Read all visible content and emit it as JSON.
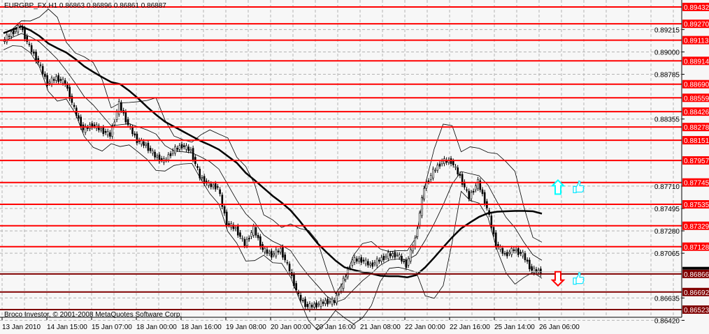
{
  "header": {
    "title": "EURGBP_FX,H1  0.86863 0.86896 0.86861 0.86887"
  },
  "footer": {
    "copyright": "Broco Investor, © 2001-2008 MetaQuotes Software Corp."
  },
  "colors": {
    "background": "#f7f7f7",
    "level_upper": "#ff0000",
    "level_lower": "#800000",
    "grid": "#b4b4b4",
    "up_arrow": "#00ffff",
    "down_arrow": "#ff0000",
    "thumb": "#00e5ff"
  },
  "signals": [
    {
      "type": "up-arrow",
      "icon": "thumbs-up-icon",
      "price": 0.877
    },
    {
      "type": "down-arrow",
      "icon": "thumbs-up-icon",
      "price": 0.8682
    }
  ],
  "chart_data": {
    "type": "candlestick",
    "symbol": "EURGBP_FX",
    "timeframe": "H1",
    "ylim": [
      0.8642,
      0.8948
    ],
    "grid": true,
    "price_ticks": [
      "0.89215",
      "0.89000",
      "0.88785",
      "0.88355",
      "0.87710",
      "0.87495",
      "0.87280",
      "0.87065",
      "0.86635",
      "0.86420"
    ],
    "time_ticks": [
      "13 Jan 2010",
      "14 Jan 15:00",
      "15 Jan 07:00",
      "18 Jan 00:00",
      "18 Jan 16:00",
      "19 Jan 08:00",
      "20 Jan 00:00",
      "20 Jan 16:00",
      "21 Jan 08:00",
      "22 Jan 00:00",
      "22 Jan 16:00",
      "25 Jan 14:00",
      "26 Jan 06:00"
    ],
    "levels_upper": [
      "0.89432",
      "0.89270",
      "0.89113",
      "0.88914",
      "0.88690",
      "0.88559",
      "0.88426",
      "0.88278",
      "0.88151",
      "0.87957",
      "0.87745",
      "0.87535",
      "0.87329",
      "0.87128"
    ],
    "levels_lower": [
      "0.86866",
      "0.86692",
      "0.86523"
    ],
    "current_price": "0.86887",
    "close": [
      0.891,
      0.8918,
      0.8925,
      0.8905,
      0.889,
      0.887,
      0.8875,
      0.887,
      0.8845,
      0.8825,
      0.883,
      0.8825,
      0.882,
      0.885,
      0.883,
      0.8815,
      0.881,
      0.88,
      0.8795,
      0.8805,
      0.881,
      0.8805,
      0.878,
      0.8772,
      0.877,
      0.8735,
      0.873,
      0.8715,
      0.873,
      0.871,
      0.8705,
      0.871,
      0.869,
      0.8665,
      0.8655,
      0.8657,
      0.866,
      0.866,
      0.868,
      0.87,
      0.87,
      0.8695,
      0.87,
      0.8705,
      0.8705,
      0.8695,
      0.872,
      0.877,
      0.8785,
      0.8795,
      0.8795,
      0.878,
      0.876,
      0.8775,
      0.875,
      0.8715,
      0.8705,
      0.871,
      0.8705,
      0.869,
      0.86887
    ]
  }
}
